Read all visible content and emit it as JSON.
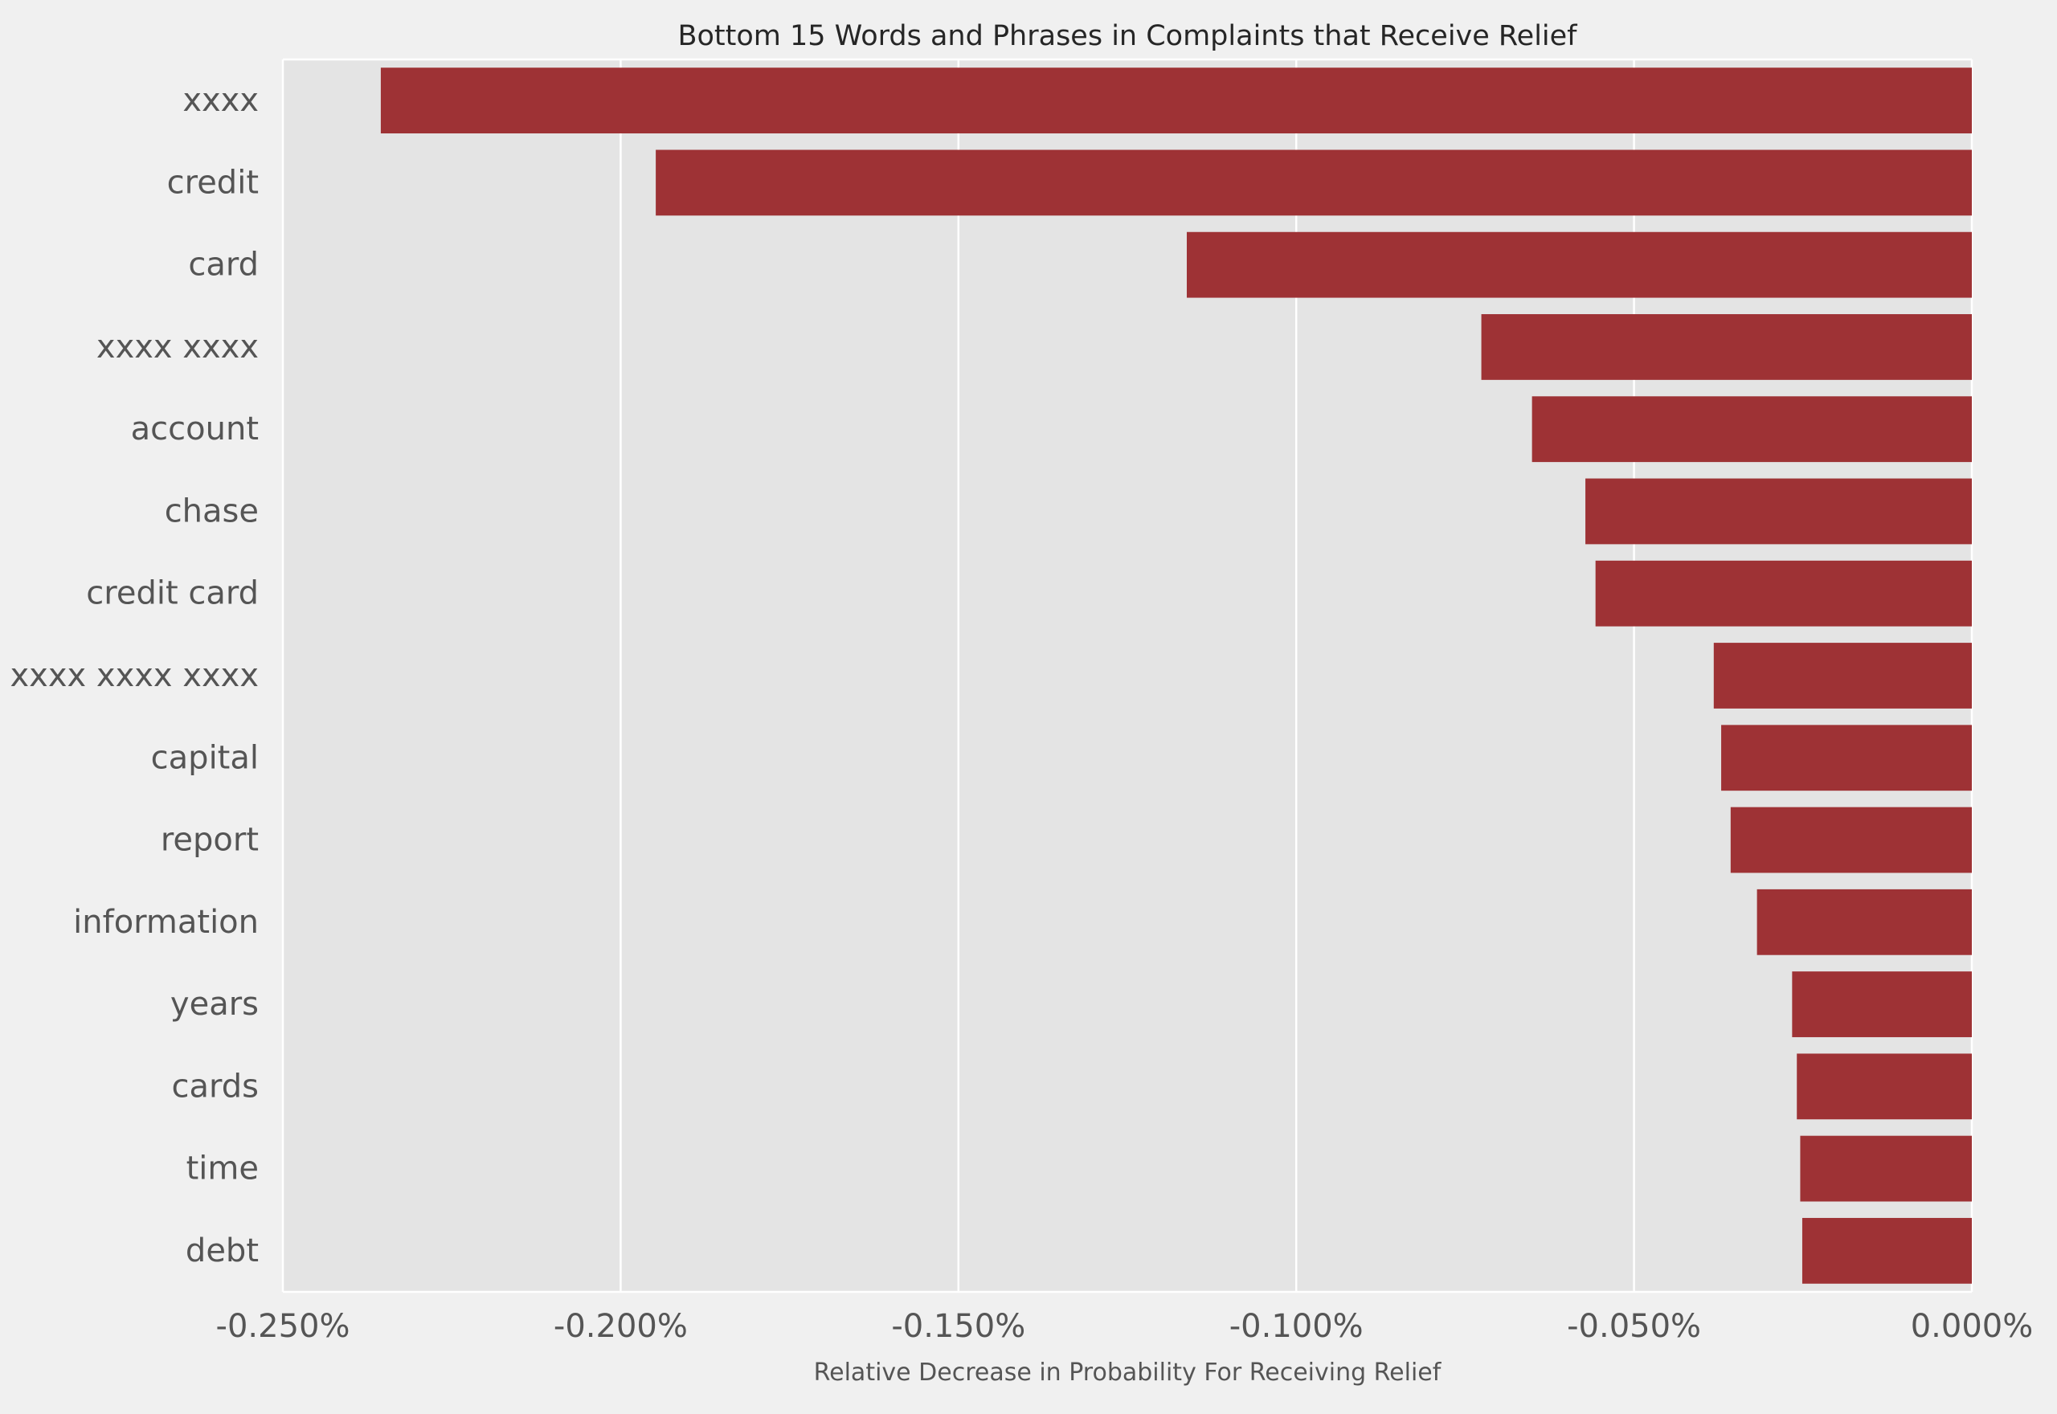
{
  "chart_data": {
    "type": "bar",
    "orientation": "horizontal",
    "title": "Bottom 15 Words and Phrases in Complaints that Receive Relief",
    "xlabel": "Relative Decrease in Probability For Receiving Relief",
    "ylabel": "",
    "xlim": [
      -0.25,
      0.0
    ],
    "x_unit": "%",
    "x_ticks": [
      -0.25,
      -0.2,
      -0.15,
      -0.1,
      -0.05,
      0.0
    ],
    "x_tick_labels": [
      "-0.250%",
      "-0.200%",
      "-0.150%",
      "-0.100%",
      "-0.050%",
      "0.000%"
    ],
    "categories": [
      "xxxx",
      "credit",
      "card",
      "xxxx xxxx",
      "account",
      "chase",
      "credit card",
      "xxxx xxxx xxxx",
      "capital",
      "report",
      "information",
      "years",
      "cards",
      "time",
      "debt"
    ],
    "values": [
      -0.2355,
      -0.1948,
      -0.1162,
      -0.0726,
      -0.0651,
      -0.0572,
      -0.0557,
      -0.0382,
      -0.0371,
      -0.0357,
      -0.0318,
      -0.0266,
      -0.0259,
      -0.0254,
      -0.0251
    ],
    "grid": true,
    "grid_axis": "x",
    "legend": "none",
    "colors": {
      "bar": "#9e3235",
      "plot_background": "#e4e4e4",
      "figure_background": "#f0f0f0",
      "grid": "#ffffff",
      "text": "#555555",
      "title": "#262626"
    }
  }
}
